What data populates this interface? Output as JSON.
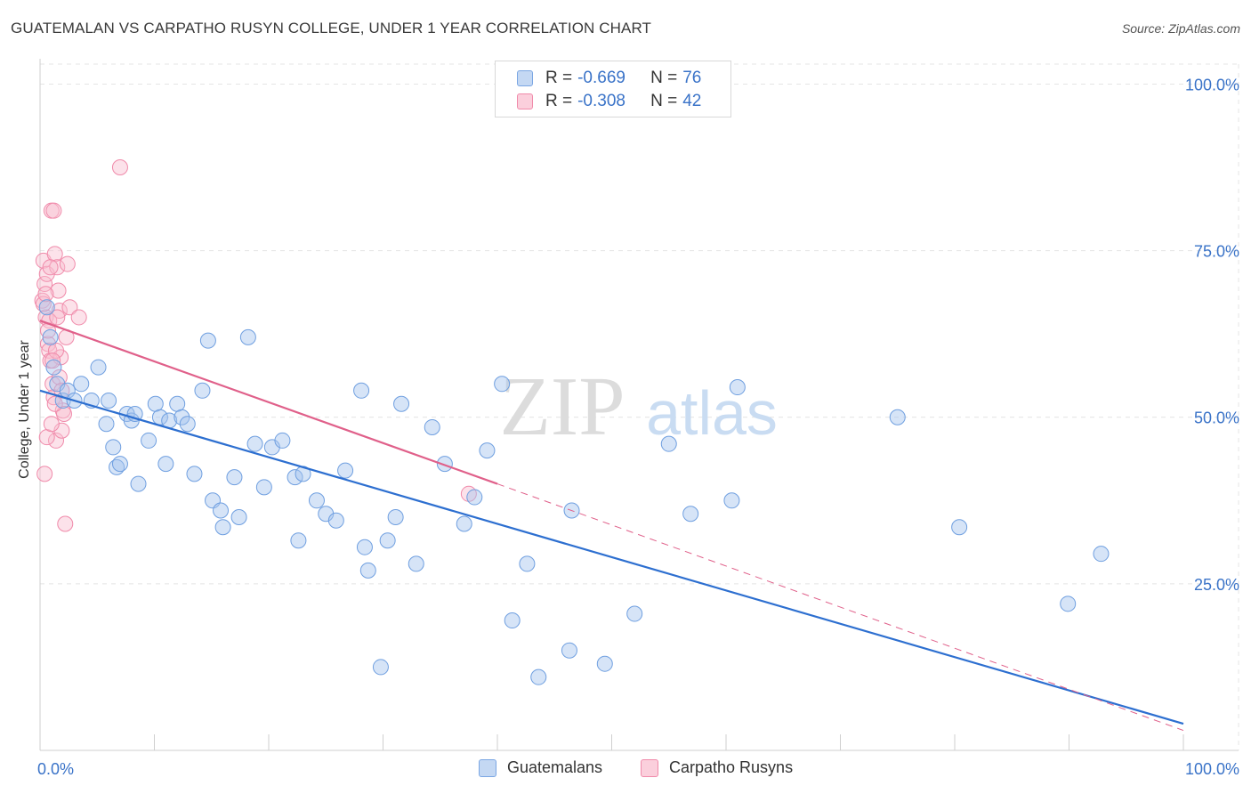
{
  "title": "GUATEMALAN VS CARPATHO RUSYN COLLEGE, UNDER 1 YEAR CORRELATION CHART",
  "source": "Source: ZipAtlas.com",
  "watermark": {
    "zip": "ZIP",
    "atlas": "atlas"
  },
  "legend_stats": [
    {
      "r_label": "R =",
      "r_value": "-0.669",
      "n_label": "N =",
      "n_value": "76"
    },
    {
      "r_label": "R =",
      "r_value": "-0.308",
      "n_label": "N =",
      "n_value": "42"
    }
  ],
  "chart_data": {
    "type": "scatter",
    "title": "GUATEMALAN VS CARPATHO RUSYN COLLEGE, UNDER 1 YEAR CORRELATION CHART",
    "xlabel": "",
    "ylabel": "College, Under 1 year",
    "xlim": [
      0,
      100
    ],
    "ylim": [
      0,
      103
    ],
    "x_tick_labels": [
      "0.0%",
      "100.0%"
    ],
    "y_ticks": [
      25,
      50,
      75,
      100
    ],
    "y_tick_labels": [
      "25.0%",
      "50.0%",
      "75.0%",
      "100.0%"
    ],
    "grid": true,
    "legend_position": "top-center",
    "colors": {
      "Guatemalans": "#5b8fd9",
      "Carpatho Rusyns": "#f08aaa",
      "blue_line": "#2d6fd0",
      "pink_line": "#e0608a"
    },
    "series": [
      {
        "name": "Guatemalans",
        "color": "#5b8fd9",
        "x": [
          0.6,
          0.9,
          1.2,
          1.5,
          2.0,
          2.4,
          3.0,
          3.6,
          4.5,
          5.1,
          5.8,
          6.0,
          6.4,
          6.7,
          7.0,
          7.6,
          8.0,
          8.6,
          8.3,
          9.5,
          10.1,
          10.5,
          11.0,
          11.3,
          12.0,
          12.4,
          12.9,
          13.5,
          14.2,
          14.7,
          15.1,
          15.8,
          17.0,
          17.4,
          16.0,
          18.2,
          18.8,
          19.6,
          20.3,
          21.2,
          22.3,
          22.6,
          23.0,
          24.2,
          25.0,
          25.9,
          26.7,
          28.1,
          28.4,
          28.7,
          29.8,
          30.4,
          31.1,
          31.6,
          32.9,
          34.3,
          35.4,
          37.1,
          38.0,
          39.1,
          40.4,
          41.3,
          42.6,
          43.6,
          46.3,
          46.5,
          49.4,
          52.0,
          56.9,
          60.5,
          61.0,
          80.4,
          89.9,
          92.8,
          75.0,
          55.0
        ],
        "y": [
          66.5,
          62.0,
          57.5,
          55.0,
          52.5,
          54.0,
          52.5,
          55.0,
          52.5,
          57.5,
          49.0,
          52.5,
          45.5,
          42.5,
          43.0,
          50.5,
          49.5,
          40.0,
          50.5,
          46.5,
          52.0,
          50.0,
          43.0,
          49.5,
          52.0,
          50.0,
          49.0,
          41.5,
          54.0,
          61.5,
          37.5,
          36.0,
          41.0,
          35.0,
          33.5,
          62.0,
          46.0,
          39.5,
          45.5,
          46.5,
          41.0,
          31.5,
          41.5,
          37.5,
          35.5,
          34.5,
          42.0,
          54.0,
          30.5,
          27.0,
          12.5,
          31.5,
          35.0,
          52.0,
          28.0,
          48.5,
          43.0,
          34.0,
          38.0,
          45.0,
          55.0,
          19.5,
          28.0,
          11.0,
          15.0,
          36.0,
          13.0,
          20.5,
          35.5,
          37.5,
          54.5,
          33.5,
          22.0,
          29.5,
          50.0,
          46.0
        ]
      },
      {
        "name": "Carpatho Rusyns",
        "color": "#f08aaa",
        "x": [
          0.2,
          0.3,
          0.4,
          0.5,
          0.6,
          0.7,
          0.8,
          0.9,
          1.0,
          1.1,
          1.2,
          1.3,
          1.4,
          1.5,
          1.6,
          1.7,
          1.8,
          1.9,
          2.0,
          2.1,
          2.2,
          2.4,
          0.4,
          0.6,
          0.8,
          1.0,
          1.2,
          1.4,
          0.3,
          0.5,
          0.7,
          0.9,
          1.1,
          1.3,
          1.5,
          1.7,
          1.9,
          2.3,
          2.6,
          3.4,
          7.0,
          37.5
        ],
        "y": [
          67.5,
          73.5,
          70.0,
          65.0,
          71.5,
          61.0,
          60.0,
          58.5,
          81.0,
          55.0,
          53.0,
          74.5,
          46.5,
          72.5,
          69.0,
          66.0,
          59.0,
          48.0,
          51.0,
          50.5,
          34.0,
          73.0,
          41.5,
          47.0,
          64.5,
          49.0,
          81.0,
          60.0,
          67.0,
          68.5,
          63.0,
          72.5,
          58.5,
          52.0,
          65.0,
          56.0,
          54.0,
          62.0,
          66.5,
          65.0,
          87.5,
          38.5
        ]
      }
    ],
    "trend_lines": [
      {
        "series": "Guatemalans",
        "x": [
          0,
          100
        ],
        "y": [
          54.0,
          4.0
        ],
        "style": "solid"
      },
      {
        "series": "Carpatho Rusyns",
        "x": [
          0,
          40
        ],
        "y": [
          64.5,
          40.0
        ],
        "style": "solid"
      },
      {
        "series": "Carpatho Rusyns",
        "x": [
          40,
          100
        ],
        "y": [
          40.0,
          3.0
        ],
        "style": "dashed"
      }
    ]
  },
  "legend": [
    {
      "label": "Guatemalans",
      "color": "#5b8fd9"
    },
    {
      "label": "Carpatho Rusyns",
      "color": "#f08aaa"
    }
  ]
}
